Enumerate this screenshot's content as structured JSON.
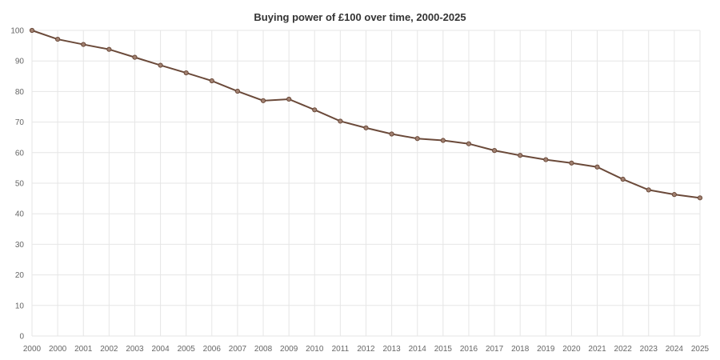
{
  "chart_data": {
    "type": "line",
    "title": "Buying power of £100 over time, 2000-2025",
    "xlabel": "",
    "ylabel": "",
    "categories": [
      "2000",
      "2000",
      "2001",
      "2002",
      "2003",
      "2004",
      "2005",
      "2006",
      "2007",
      "2008",
      "2009",
      "2010",
      "2011",
      "2012",
      "2013",
      "2014",
      "2015",
      "2016",
      "2017",
      "2018",
      "2019",
      "2020",
      "2021",
      "2022",
      "2023",
      "2024",
      "2025"
    ],
    "series": [
      {
        "values": [
          100,
          97.1,
          95.4,
          93.8,
          91.2,
          88.6,
          86.1,
          83.5,
          80.1,
          77.0,
          77.5,
          74.0,
          70.3,
          68.1,
          66.1,
          64.6,
          64.0,
          62.9,
          60.7,
          59.1,
          57.7,
          56.6,
          55.3,
          51.3,
          47.8,
          46.3,
          45.2
        ],
        "color": "#6b4a3a"
      }
    ],
    "ylim": [
      0,
      100
    ],
    "yticks": [
      0,
      10,
      20,
      30,
      40,
      50,
      60,
      70,
      80,
      90,
      100
    ],
    "grid": true,
    "legend": "none"
  }
}
